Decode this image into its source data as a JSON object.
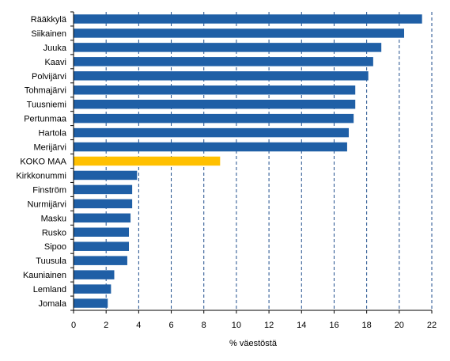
{
  "chart_data": {
    "type": "bar",
    "orientation": "horizontal",
    "xlabel": "% väestöstä",
    "xlim": [
      0,
      22
    ],
    "xticks": [
      0,
      2,
      4,
      6,
      8,
      10,
      12,
      14,
      16,
      18,
      20,
      22
    ],
    "grid": "vertical dashed",
    "colors": {
      "bar": "#1f5fa6",
      "highlight": "#ffc000",
      "grid": "#1f4e8c"
    },
    "highlight_category": "KOKO MAA",
    "categories": [
      "Rääkkylä",
      "Siikainen",
      "Juuka",
      "Kaavi",
      "Polvijärvi",
      "Tohmajärvi",
      "Tuusniemi",
      "Pertunmaa",
      "Hartola",
      "Merijärvi",
      "KOKO MAA",
      "Kirkkonummi",
      "Finström",
      "Nurmijärvi",
      "Masku",
      "Rusko",
      "Sipoo",
      "Tuusula",
      "Kauniainen",
      "Lemland",
      "Jomala"
    ],
    "values": [
      21.4,
      20.3,
      18.9,
      18.4,
      18.1,
      17.3,
      17.3,
      17.2,
      16.9,
      16.8,
      9.0,
      3.9,
      3.6,
      3.6,
      3.5,
      3.4,
      3.4,
      3.3,
      2.5,
      2.3,
      2.1
    ]
  }
}
